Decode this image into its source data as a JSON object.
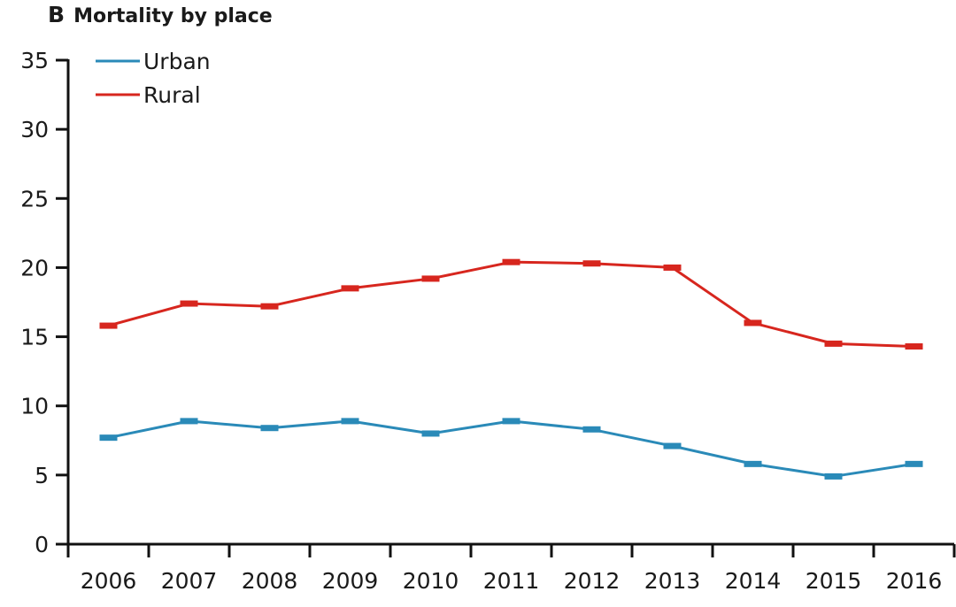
{
  "panel": {
    "letter": "B",
    "title": "Mortality by place"
  },
  "chart_data": {
    "type": "line",
    "title": "Mortality by place",
    "xlabel": "",
    "ylabel": "",
    "categories": [
      "2006",
      "2007",
      "2008",
      "2009",
      "2010",
      "2011",
      "2012",
      "2013",
      "2014",
      "2015",
      "2016"
    ],
    "ylim": [
      0,
      35
    ],
    "yticks": [
      0,
      5,
      10,
      15,
      20,
      25,
      30,
      35
    ],
    "grid": false,
    "legend_position": "top-left",
    "series": [
      {
        "name": "Urban",
        "color": "#2a8ab8",
        "values": [
          7.7,
          8.9,
          8.4,
          8.9,
          8.0,
          8.9,
          8.3,
          7.1,
          5.8,
          4.9,
          5.8
        ]
      },
      {
        "name": "Rural",
        "color": "#d7261e",
        "values": [
          15.8,
          17.4,
          17.2,
          18.5,
          19.2,
          20.4,
          20.3,
          20.0,
          16.0,
          14.5,
          14.3
        ]
      }
    ]
  }
}
